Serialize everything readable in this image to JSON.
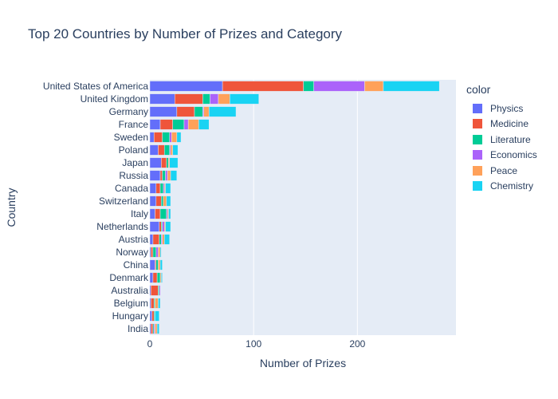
{
  "chart_data": {
    "type": "bar",
    "orientation": "horizontal",
    "barmode": "stack",
    "title": "Top 20 Countries by Number of Prizes and Category",
    "xlabel": "Number of Prizes",
    "ylabel": "Country",
    "xlim": [
      0,
      295
    ],
    "xticks": [
      0,
      100,
      200
    ],
    "grid": true,
    "legend_title": "color",
    "legend_position": "right",
    "categories": [
      "United States of America",
      "United Kingdom",
      "Germany",
      "France",
      "Sweden",
      "Poland",
      "Japan",
      "Russia",
      "Canada",
      "Switzerland",
      "Italy",
      "Netherlands",
      "Austria",
      "Norway",
      "China",
      "Denmark",
      "Australia",
      "Belgium",
      "Hungary",
      "India"
    ],
    "series": [
      {
        "name": "Physics",
        "color": "#636efa",
        "values": [
          70,
          24,
          26,
          10,
          4,
          8,
          11,
          10,
          6,
          6,
          5,
          9,
          3,
          1,
          5,
          3,
          1,
          1,
          2,
          1
        ]
      },
      {
        "name": "Medicine",
        "color": "#EF553B",
        "values": [
          78,
          27,
          17,
          12,
          8,
          6,
          5,
          2,
          4,
          5,
          5,
          2,
          6,
          2,
          1,
          4,
          7,
          3,
          2,
          2
        ]
      },
      {
        "name": "Literature",
        "color": "#00cc96",
        "values": [
          10,
          7,
          8,
          11,
          7,
          5,
          2,
          3,
          3,
          2,
          6,
          1,
          2,
          3,
          2,
          3,
          1,
          1,
          1,
          1
        ]
      },
      {
        "name": "Economics",
        "color": "#ab63fa",
        "values": [
          49,
          8,
          1,
          4,
          2,
          1,
          0,
          2,
          1,
          0,
          1,
          2,
          1,
          2,
          0,
          0,
          1,
          0,
          0,
          1
        ]
      },
      {
        "name": "Peace",
        "color": "#FFA15A",
        "values": [
          18,
          11,
          5,
          10,
          5,
          2,
          1,
          3,
          1,
          3,
          1,
          1,
          2,
          2,
          2,
          1,
          0,
          3,
          0,
          2
        ]
      },
      {
        "name": "Chemistry",
        "color": "#19d3f3",
        "values": [
          54,
          28,
          26,
          10,
          4,
          5,
          8,
          6,
          5,
          4,
          2,
          5,
          5,
          1,
          2,
          1,
          0,
          2,
          4,
          2
        ]
      }
    ]
  }
}
